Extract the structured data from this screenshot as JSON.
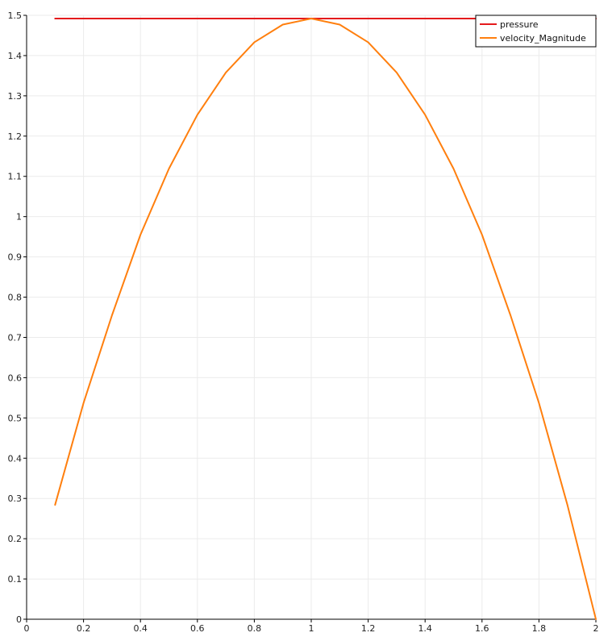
{
  "chart_data": {
    "type": "line",
    "title": "",
    "xlabel": "",
    "ylabel": "",
    "xlim": [
      0,
      2
    ],
    "ylim": [
      0,
      1.5
    ],
    "x_ticks": [
      0,
      0.2,
      0.4,
      0.6,
      0.8,
      1,
      1.2,
      1.4,
      1.6,
      1.8,
      2
    ],
    "x_tick_labels": [
      "0",
      "0.2",
      "0.4",
      "0.6",
      "0.8",
      "1",
      "1.2",
      "1.4",
      "1.6",
      "1.8",
      "2"
    ],
    "y_ticks": [
      0,
      0.1,
      0.2,
      0.3,
      0.4,
      0.5,
      0.6,
      0.7,
      0.8,
      0.9,
      1,
      1.1,
      1.2,
      1.3,
      1.4,
      1.5
    ],
    "y_tick_labels": [
      "0",
      "0.1",
      "0.2",
      "0.3",
      "0.4",
      "0.5",
      "0.6",
      "0.7",
      "0.8",
      "0.9",
      "1",
      "1.1",
      "1.2",
      "1.3",
      "1.4",
      "1.5"
    ],
    "grid": true,
    "legend_position": "top-right",
    "series": [
      {
        "name": "pressure",
        "color": "#e41a1c",
        "x": [
          0.1,
          0.2,
          0.3,
          0.4,
          0.5,
          0.6,
          0.7,
          0.8,
          0.9,
          1.0,
          1.1,
          1.2,
          1.3,
          1.4,
          1.5,
          1.6,
          1.7,
          1.8,
          1.9,
          2.0
        ],
        "y": [
          1.492,
          1.492,
          1.492,
          1.492,
          1.492,
          1.492,
          1.492,
          1.492,
          1.492,
          1.492,
          1.492,
          1.492,
          1.492,
          1.492,
          1.492,
          1.492,
          1.492,
          1.492,
          1.492,
          1.492
        ]
      },
      {
        "name": "velocity_Magnitude",
        "color": "#ff7f0e",
        "x": [
          0.1,
          0.2,
          0.3,
          0.4,
          0.5,
          0.6,
          0.7,
          0.8,
          0.9,
          1.0,
          1.1,
          1.2,
          1.3,
          1.4,
          1.5,
          1.6,
          1.7,
          1.8,
          1.9,
          2.0
        ],
        "y": [
          0.284,
          0.537,
          0.755,
          0.955,
          1.119,
          1.253,
          1.358,
          1.433,
          1.477,
          1.492,
          1.477,
          1.433,
          1.358,
          1.253,
          1.119,
          0.955,
          0.755,
          0.537,
          0.284,
          0.0
        ]
      }
    ]
  }
}
